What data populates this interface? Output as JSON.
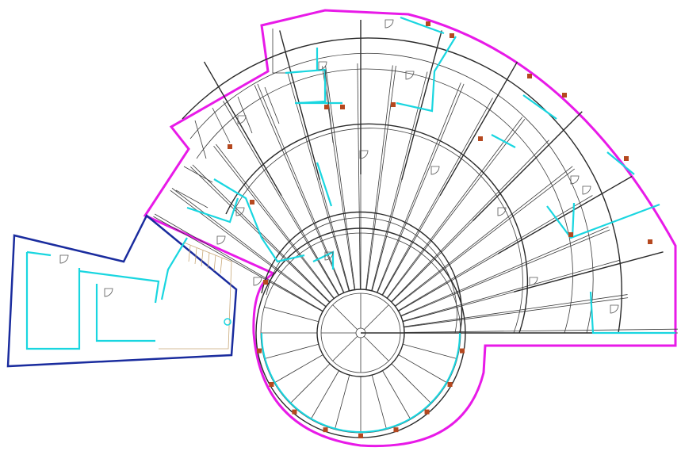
{
  "drawing": {
    "type": "architectural floor plan",
    "colors": {
      "background": "#ffffff",
      "outline_main": "#e81ae8",
      "outline_annex": "#1a2c9e",
      "partition": "#19d6e0",
      "wall_line": "#3a3a3a",
      "column": "#b5481f",
      "stair_hatch": "#c8a878"
    },
    "zones": [
      {
        "id": "main-building",
        "outline_color_key": "outline_main"
      },
      {
        "id": "annex",
        "outline_color_key": "outline_annex"
      }
    ],
    "icons": [
      "door-swing-icon",
      "structural-column-icon",
      "circle-marker-icon"
    ]
  }
}
